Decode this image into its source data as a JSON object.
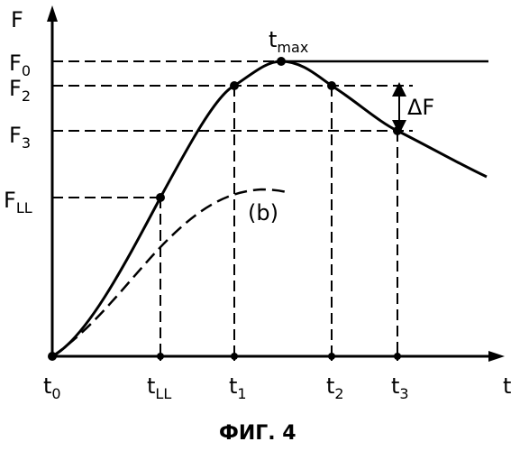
{
  "axes": {
    "y_label": "F",
    "x_label": "t"
  },
  "y_levels": [
    {
      "id": "F0",
      "label": "F",
      "sub": "0"
    },
    {
      "id": "F2",
      "label": "F",
      "sub": "2"
    },
    {
      "id": "F3",
      "label": "F",
      "sub": "3"
    },
    {
      "id": "FLL",
      "label": "F",
      "sub": "LL"
    }
  ],
  "x_ticks": [
    {
      "id": "t0",
      "label": "t",
      "sub": "0"
    },
    {
      "id": "tLL",
      "label": "t",
      "sub": "LL"
    },
    {
      "id": "t1",
      "label": "t",
      "sub": "1"
    },
    {
      "id": "t2",
      "label": "t",
      "sub": "2"
    },
    {
      "id": "t3",
      "label": "t",
      "sub": "3"
    }
  ],
  "annotations": {
    "tmax": {
      "label": "t",
      "sub": "max"
    },
    "delta": "ΔF",
    "curve_b": "(b)"
  },
  "caption": "ФИГ. 4"
}
